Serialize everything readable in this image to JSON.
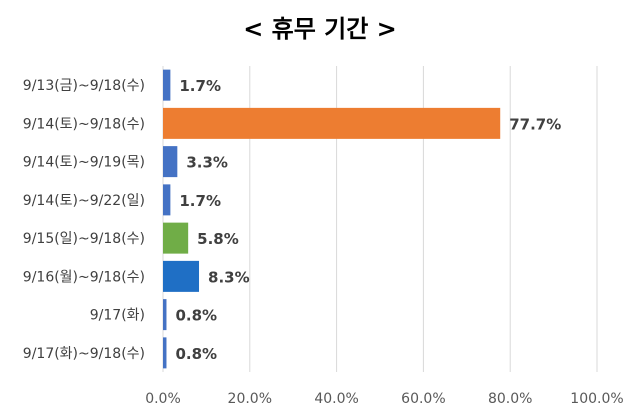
{
  "chart_data": {
    "type": "bar",
    "orientation": "horizontal",
    "title": "< 휴무 기간 >",
    "xlabel": "",
    "ylabel": "",
    "xlim": [
      0,
      100
    ],
    "xticks": [
      0,
      20,
      40,
      60,
      80,
      100
    ],
    "tick_labels": [
      "0.0%",
      "20.0%",
      "40.0%",
      "60.0%",
      "80.0%",
      "100.0%"
    ],
    "grid": "vertical gridlines",
    "legend": "none",
    "categories": [
      "9/13(금)~9/18(수)",
      "9/14(토)~9/18(수)",
      "9/14(토)~9/19(목)",
      "9/14(토)~9/22(일)",
      "9/15(일)~9/18(수)",
      "9/16(월)~9/18(수)",
      "9/17(화)",
      "9/17(화)~9/18(수)"
    ],
    "values": [
      1.7,
      77.7,
      3.3,
      1.7,
      5.8,
      8.3,
      0.8,
      0.8
    ],
    "data_labels": [
      "1.7%",
      "77.7%",
      "3.3%",
      "1.7%",
      "5.8%",
      "8.3%",
      "0.8%",
      "0.8%"
    ],
    "colors": [
      "#4472C4",
      "#ED7D31",
      "#4472C4",
      "#4472C4",
      "#70AD47",
      "#1F6FC5",
      "#4472C4",
      "#4472C4"
    ],
    "gridline_color": "#D9D9D9"
  }
}
